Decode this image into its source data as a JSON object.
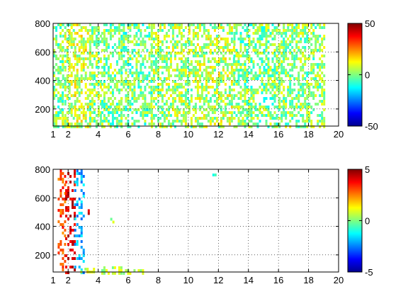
{
  "chart_data": [
    {
      "type": "heatmap",
      "title": "",
      "xlabel": "",
      "ylabel": "",
      "xlim": [
        1,
        20
      ],
      "ylim": [
        80,
        800
      ],
      "xticks": [
        1,
        2,
        4,
        6,
        8,
        10,
        12,
        14,
        16,
        18,
        20
      ],
      "yticks": [
        200,
        400,
        600,
        800
      ],
      "grid": true,
      "colorbar": {
        "colormap": "jet",
        "range": [
          -50,
          50
        ],
        "ticks": [
          -50,
          0,
          50
        ]
      },
      "note_values": "sparse scattered cells; values mostly near 0 (cyan/green/yellow)",
      "patches": [
        {
          "x": [
            1.0,
            1.6
          ],
          "y": [
            80,
            800
          ],
          "value": 0
        },
        {
          "x": [
            1.6,
            2.4
          ],
          "y": [
            80,
            800
          ],
          "value": 5
        },
        {
          "x": [
            2.4,
            3.4
          ],
          "y": [
            80,
            800
          ],
          "value": 8
        },
        {
          "x": [
            3.4,
            4.2
          ],
          "y": [
            80,
            800
          ],
          "value": 2
        },
        {
          "x": [
            4.2,
            5.5
          ],
          "y": [
            80,
            800
          ],
          "value": 0
        },
        {
          "x": [
            5.5,
            7.5
          ],
          "y": [
            80,
            800
          ],
          "value": -2
        },
        {
          "x": [
            7.5,
            10.0
          ],
          "y": [
            80,
            800
          ],
          "value": 3
        },
        {
          "x": [
            10.0,
            13.0
          ],
          "y": [
            80,
            800
          ],
          "value": 5
        },
        {
          "x": [
            13.0,
            16.0
          ],
          "y": [
            80,
            800
          ],
          "value": 0
        },
        {
          "x": [
            16.0,
            19.0
          ],
          "y": [
            80,
            800
          ],
          "value": 2
        }
      ]
    },
    {
      "type": "heatmap",
      "title": "",
      "xlabel": "",
      "ylabel": "",
      "xlim": [
        1,
        20
      ],
      "ylim": [
        80,
        800
      ],
      "xticks": [
        1,
        2,
        4,
        6,
        8,
        10,
        12,
        14,
        16,
        18,
        20
      ],
      "yticks": [
        200,
        400,
        600,
        800
      ],
      "grid": true,
      "colorbar": {
        "colormap": "jet",
        "range": [
          -5,
          5
        ],
        "ticks": [
          -5,
          0,
          5
        ]
      },
      "patches": [
        {
          "x": [
            1.3,
            1.8
          ],
          "y": [
            80,
            800
          ],
          "value": 3
        },
        {
          "x": [
            1.8,
            2.4
          ],
          "y": [
            80,
            800
          ],
          "value": 4
        },
        {
          "x": [
            2.4,
            3.0
          ],
          "y": [
            80,
            800
          ],
          "value": -2
        },
        {
          "x": [
            2.8,
            4.2
          ],
          "y": [
            80,
            110
          ],
          "value": 1
        },
        {
          "x": [
            4.2,
            5.5
          ],
          "y": [
            80,
            120
          ],
          "value": 0.5
        },
        {
          "x": [
            5.5,
            7.0
          ],
          "y": [
            80,
            100
          ],
          "value": 0.5
        },
        {
          "x": [
            11.6,
            11.8
          ],
          "y": [
            750,
            770
          ],
          "value": -1
        },
        {
          "x": [
            3.3,
            3.5
          ],
          "y": [
            490,
            520
          ],
          "value": 4
        },
        {
          "x": [
            4.8,
            5.0
          ],
          "y": [
            440,
            460
          ],
          "value": 0.5
        }
      ]
    }
  ]
}
